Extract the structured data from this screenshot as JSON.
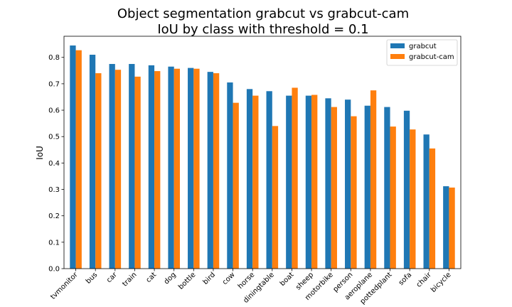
{
  "chart_data": {
    "type": "bar",
    "title_lines": [
      "Object segmentation grabcut vs grabcut-cam",
      "IoU by class with threshold = 0.1"
    ],
    "xlabel": "",
    "ylabel": "IoU",
    "ylim": [
      0,
      0.88
    ],
    "yticks": [
      "0.0",
      "0.1",
      "0.2",
      "0.3",
      "0.4",
      "0.5",
      "0.6",
      "0.7",
      "0.8"
    ],
    "categories": [
      "tvmonitor",
      "bus",
      "car",
      "train",
      "cat",
      "dog",
      "bottle",
      "bird",
      "cow",
      "horse",
      "diningtable",
      "boat",
      "sheep",
      "motorbike",
      "person",
      "aeroplane",
      "pottedplant",
      "sofa",
      "chair",
      "bicycle"
    ],
    "series": [
      {
        "name": "grabcut",
        "color": "#1f77b4",
        "values": [
          0.845,
          0.81,
          0.775,
          0.775,
          0.77,
          0.765,
          0.76,
          0.745,
          0.705,
          0.68,
          0.672,
          0.655,
          0.655,
          0.645,
          0.64,
          0.617,
          0.612,
          0.598,
          0.508,
          0.312
        ]
      },
      {
        "name": "grabcut-cam",
        "color": "#ff7f0e",
        "values": [
          0.827,
          0.74,
          0.753,
          0.727,
          0.748,
          0.757,
          0.757,
          0.74,
          0.628,
          0.655,
          0.54,
          0.685,
          0.658,
          0.612,
          0.577,
          0.675,
          0.538,
          0.527,
          0.455,
          0.307
        ]
      }
    ],
    "legend_position": "top-right",
    "grid": false
  }
}
